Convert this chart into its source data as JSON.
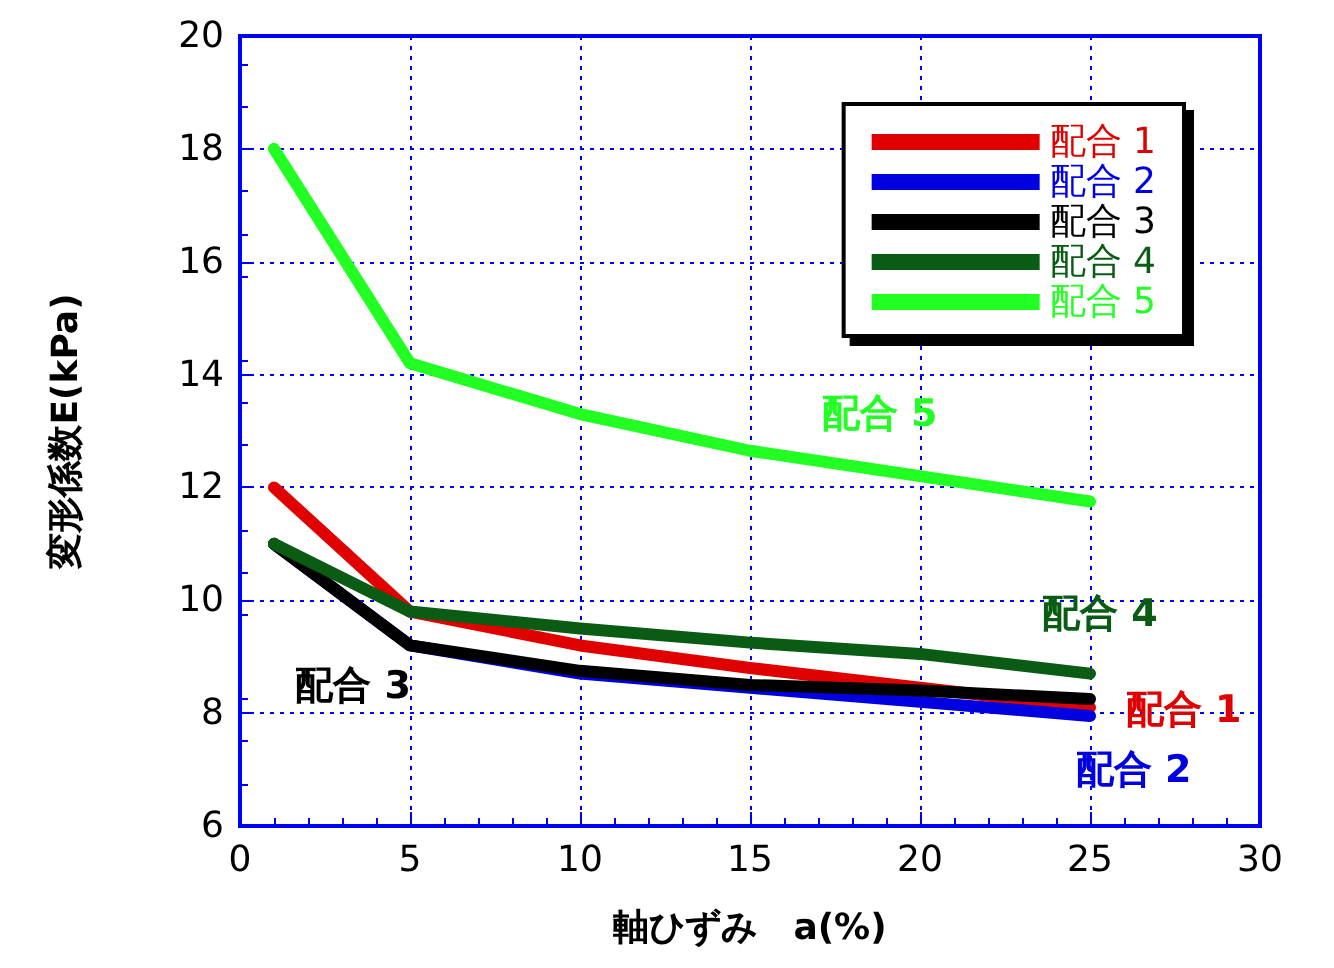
{
  "chart_data": {
    "type": "line",
    "xlabel": "軸ひずみ　a(%)",
    "ylabel": "変形係数E(kPa)",
    "x": [
      1,
      5,
      10,
      15,
      20,
      25
    ],
    "series": [
      {
        "name": "配合 1",
        "color": "#e00000",
        "values": [
          12,
          9.8,
          9.2,
          8.8,
          8.45,
          8.1
        ]
      },
      {
        "name": "配合 2",
        "color": "#0000e0",
        "values": [
          11,
          9.2,
          8.7,
          8.45,
          8.2,
          7.95
        ]
      },
      {
        "name": "配合 3",
        "color": "#000000",
        "values": [
          11,
          9.2,
          8.75,
          8.5,
          8.4,
          8.25
        ]
      },
      {
        "name": "配合 4",
        "color": "#0a5c14",
        "values": [
          11,
          9.8,
          9.5,
          9.25,
          9.05,
          8.7
        ]
      },
      {
        "name": "配合 5",
        "color": "#22ff22",
        "values": [
          18,
          14.2,
          13.3,
          12.65,
          12.2,
          11.75
        ]
      }
    ],
    "annotations": [
      "配合 1",
      "配合 2",
      "配合 3",
      "配合 4",
      "配合 5"
    ],
    "xlim": [
      0,
      30
    ],
    "xticks": [
      0,
      5,
      10,
      15,
      20,
      25,
      30
    ],
    "ylim": [
      6,
      20
    ],
    "yticks": [
      6,
      8,
      10,
      12,
      14,
      16,
      18,
      20
    ],
    "grid": true,
    "legend": "top right",
    "marker": "none",
    "line_style": "solid"
  }
}
